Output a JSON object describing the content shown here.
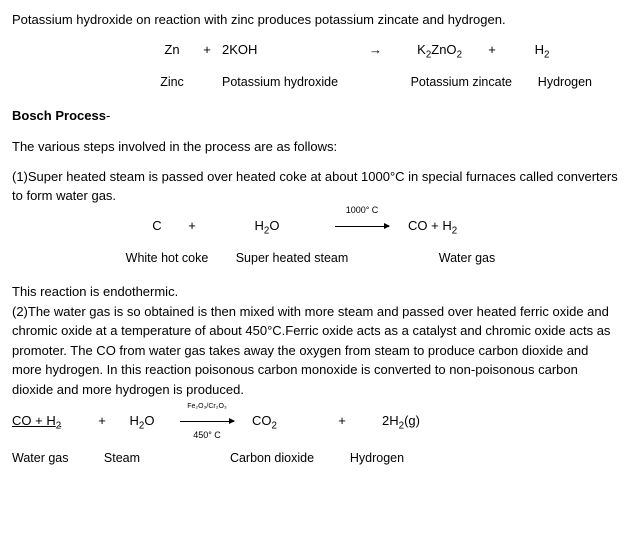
{
  "intro": "Potassium hydroxide on reaction with zinc produces potassium zincate and hydrogen.",
  "eq1": {
    "c1": "Zn",
    "c2": "+",
    "c3": "2KOH",
    "c4": "→",
    "c5": "K",
    "c5s": "2",
    "c5b": "ZnO",
    "c5s2": "2",
    "c6": "+",
    "c7": "H",
    "c7s": "2",
    "l1": "Zinc",
    "l3": "Potassium hydroxide",
    "l5": "Potassium zincate",
    "l7": "Hydrogen"
  },
  "boschTitle": "Bosch Process",
  "boschDash": "-",
  "boschIntro": "The various steps involved in the process are as follows:",
  "step1": "(1)Super heated steam is passed over heated coke at about 1000°C in special furnaces called converters to form water gas.",
  "eq2": {
    "c1": "C",
    "c2": "+",
    "c3": "H",
    "c3s": "2",
    "c3b": "O",
    "arrTop": "1000° C",
    "c5": "CO +  H",
    "c5s": "2",
    "l1": "White hot coke",
    "l3": "Super heated steam",
    "l5": "Water gas"
  },
  "endo": "This reaction is endothermic.",
  "step2": "(2)The water gas is so obtained is then mixed with more steam and passed over heated ferric oxide and chromic oxide at a temperature of about 450°C.Ferric oxide acts as a catalyst and chromic oxide acts as promoter. The CO from water gas takes away the oxygen from steam to produce carbon dioxide and more hydrogen. In this reaction poisonous carbon monoxide is converted to non-poisonous carbon dioxide and more hydrogen is produced.",
  "eq3": {
    "c1a": "CO  +  H",
    "c1s": "2",
    "c2": "+",
    "c3": "H",
    "c3s": "2",
    "c3b": "O",
    "arrTop": "Fe₂O₃/Cr₂O₃",
    "arrBot": "450° C",
    "c5": "CO",
    "c5s": "2",
    "c6": "+",
    "c7": "2H",
    "c7s": "2",
    "c7b": "(g)",
    "l1": "Water gas",
    "l3": "Steam",
    "l5": "Carbon dioxide",
    "l7": "Hydrogen"
  }
}
